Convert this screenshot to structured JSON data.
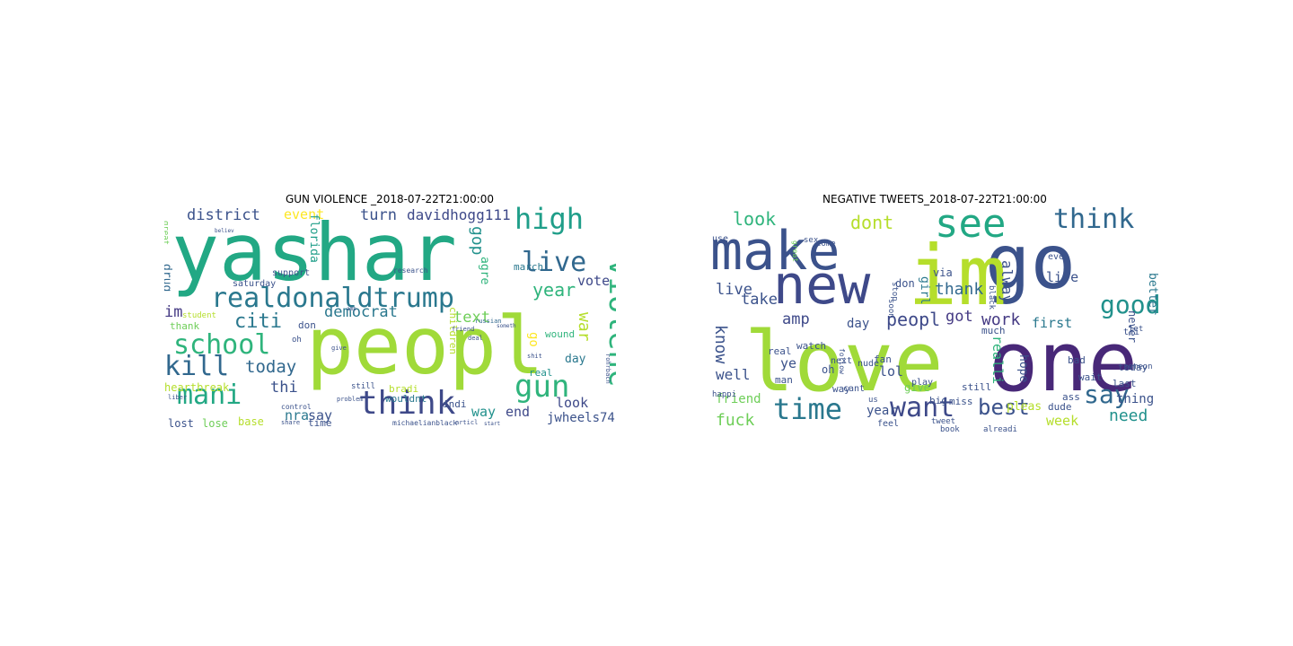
{
  "figure": {
    "panels": [
      {
        "title": "GUN VIOLENCE _2018-07-22T21:00:00",
        "words": [
          {
            "text": "yashar",
            "color": "#22a884",
            "rot": 0
          },
          {
            "text": "peopl",
            "color": "#a0da39",
            "rot": 0
          },
          {
            "text": "realdonaldtrump",
            "color": "#2a788e",
            "rot": 0
          },
          {
            "text": "school",
            "color": "#2fb47c",
            "rot": 0
          },
          {
            "text": "mani",
            "color": "#22a884",
            "rot": 0
          },
          {
            "text": "kill",
            "color": "#31688e",
            "rot": 0
          },
          {
            "text": "think",
            "color": "#3e4989",
            "rot": 0
          },
          {
            "text": "high",
            "color": "#1f9e89",
            "rot": 0
          },
          {
            "text": "live",
            "color": "#31688e",
            "rot": 0
          },
          {
            "text": "violenc",
            "color": "#2fb47c",
            "rot": 90
          },
          {
            "text": "gun",
            "color": "#2fb47c",
            "rot": 0
          },
          {
            "text": "district",
            "color": "#3b528b",
            "rot": 0
          },
          {
            "text": "davidhogg111",
            "color": "#3e4989",
            "rot": 0
          },
          {
            "text": "turn",
            "color": "#3b528b",
            "rot": 0
          },
          {
            "text": "event",
            "color": "#fde725",
            "rot": 0
          },
          {
            "text": "democrat",
            "color": "#2a788e",
            "rot": 0
          },
          {
            "text": "citi",
            "color": "#2a788e",
            "rot": 0
          },
          {
            "text": "year",
            "color": "#2fb47c",
            "rot": 0
          },
          {
            "text": "today",
            "color": "#31688e",
            "rot": 0
          },
          {
            "text": "text",
            "color": "#6ece58",
            "rot": 0
          },
          {
            "text": "im",
            "color": "#443983",
            "rot": 0
          },
          {
            "text": "thi",
            "color": "#3b528b",
            "rot": 0
          },
          {
            "text": "nra",
            "color": "#2a788e",
            "rot": 0
          },
          {
            "text": "say",
            "color": "#3b528b",
            "rot": 0
          },
          {
            "text": "end",
            "color": "#3e4989",
            "rot": 0
          },
          {
            "text": "jwheels74",
            "color": "#3b528b",
            "rot": 0
          },
          {
            "text": "vote",
            "color": "#3e4989",
            "rot": 0
          },
          {
            "text": "gop",
            "color": "#21918c",
            "rot": 90
          },
          {
            "text": "war",
            "color": "#b5de2b",
            "rot": 90
          },
          {
            "text": "look",
            "color": "#3e4989",
            "rot": 0
          },
          {
            "text": "way",
            "color": "#21918c",
            "rot": 0
          },
          {
            "text": "heartbreak",
            "color": "#b5de2b",
            "rot": 0
          },
          {
            "text": "base",
            "color": "#b5de2b",
            "rot": 0
          },
          {
            "text": "lost",
            "color": "#3b528b",
            "rot": 0
          },
          {
            "text": "lose",
            "color": "#6ece58",
            "rot": 0
          },
          {
            "text": "florida",
            "color": "#1f9e89",
            "rot": 90
          },
          {
            "text": "drug",
            "color": "#31688e",
            "rot": 90
          },
          {
            "text": "agre",
            "color": "#2fb47c",
            "rot": 90
          },
          {
            "text": "march",
            "color": "#2a788e",
            "rot": 0
          },
          {
            "text": "go",
            "color": "#fde725",
            "rot": 90
          },
          {
            "text": "day",
            "color": "#2a788e",
            "rot": 0
          },
          {
            "text": "real",
            "color": "#21918c",
            "rot": 0
          },
          {
            "text": "indi",
            "color": "#3b528b",
            "rot": 0
          },
          {
            "text": "wouldnt",
            "color": "#2a788e",
            "rot": 0
          },
          {
            "text": "bradi",
            "color": "#b5de2b",
            "rot": 0
          },
          {
            "text": "still",
            "color": "#3b528b",
            "rot": 0
          },
          {
            "text": "time",
            "color": "#3b528b",
            "rot": 0
          },
          {
            "text": "don",
            "color": "#3b528b",
            "rot": 0
          },
          {
            "text": "saturday",
            "color": "#3b528b",
            "rot": 0
          },
          {
            "text": "support",
            "color": "#3b528b",
            "rot": 0
          },
          {
            "text": "thank",
            "color": "#6ece58",
            "rot": 0
          },
          {
            "text": "children",
            "color": "#b5de2b",
            "rot": 90
          },
          {
            "text": "wound",
            "color": "#2fb47c",
            "rot": 0
          },
          {
            "text": "research",
            "color": "#3b528b",
            "rot": 0
          },
          {
            "text": "russian",
            "color": "#31688e",
            "rot": 0
          },
          {
            "text": "shit",
            "color": "#3b528b",
            "rot": 0
          },
          {
            "text": "student",
            "color": "#b5de2b",
            "rot": 0
          },
          {
            "text": "michaelianblack",
            "color": "#3b528b",
            "rot": 0
          },
          {
            "text": "articl",
            "color": "#3b528b",
            "rot": 0
          },
          {
            "text": "share",
            "color": "#3b528b",
            "rot": 0
          },
          {
            "text": "control",
            "color": "#3b528b",
            "rot": 0
          },
          {
            "text": "problem",
            "color": "#3b528b",
            "rot": 0
          },
          {
            "text": "liber",
            "color": "#3b528b",
            "rot": 0
          },
          {
            "text": "great",
            "color": "#6ece58",
            "rot": 90
          },
          {
            "text": "rohrbach",
            "color": "#3b528b",
            "rot": 90
          },
          {
            "text": "oh",
            "color": "#3b528b",
            "rot": 0
          },
          {
            "text": "friend",
            "color": "#3b528b",
            "rot": 0
          },
          {
            "text": "deal",
            "color": "#3b528b",
            "rot": 0
          },
          {
            "text": "give",
            "color": "#3b528b",
            "rot": 0
          },
          {
            "text": "amp",
            "color": "#3b528b",
            "rot": 0
          },
          {
            "text": "believ",
            "color": "#3b528b",
            "rot": 0
          },
          {
            "text": "start",
            "color": "#3b528b",
            "rot": 0
          },
          {
            "text": "someth",
            "color": "#3b528b",
            "rot": 0
          }
        ]
      },
      {
        "title": "NEGATIVE TWEETS_2018-07-22T21:00:00",
        "words": [
          {
            "text": "make",
            "color": "#3b528b",
            "rot": 0
          },
          {
            "text": "go",
            "color": "#3b528b",
            "rot": 0
          },
          {
            "text": "im",
            "color": "#b5de2b",
            "rot": 0
          },
          {
            "text": "new",
            "color": "#3e4989",
            "rot": 0
          },
          {
            "text": "see",
            "color": "#22a884",
            "rot": 0
          },
          {
            "text": "love",
            "color": "#a0da39",
            "rot": 0
          },
          {
            "text": "one",
            "color": "#482878",
            "rot": 0
          },
          {
            "text": "think",
            "color": "#31688e",
            "rot": 0
          },
          {
            "text": "good",
            "color": "#21918c",
            "rot": 0
          },
          {
            "text": "time",
            "color": "#2a788e",
            "rot": 0
          },
          {
            "text": "want",
            "color": "#3e4989",
            "rot": 0
          },
          {
            "text": "best",
            "color": "#3b528b",
            "rot": 0
          },
          {
            "text": "say",
            "color": "#31688e",
            "rot": 0
          },
          {
            "text": "look",
            "color": "#2fb47c",
            "rot": 0
          },
          {
            "text": "dont",
            "color": "#b5de2b",
            "rot": 0
          },
          {
            "text": "thank",
            "color": "#31688e",
            "rot": 0
          },
          {
            "text": "peopl",
            "color": "#3e4989",
            "rot": 0
          },
          {
            "text": "got",
            "color": "#443983",
            "rot": 0
          },
          {
            "text": "work",
            "color": "#443983",
            "rot": 0
          },
          {
            "text": "know",
            "color": "#3b528b",
            "rot": 90
          },
          {
            "text": "live",
            "color": "#3b528b",
            "rot": 0
          },
          {
            "text": "amp",
            "color": "#3e4989",
            "rot": 0
          },
          {
            "text": "take",
            "color": "#3b528b",
            "rot": 0
          },
          {
            "text": "day",
            "color": "#3b528b",
            "rot": 0
          },
          {
            "text": "well",
            "color": "#3b528b",
            "rot": 0
          },
          {
            "text": "fuck",
            "color": "#6ece58",
            "rot": 0
          },
          {
            "text": "friend",
            "color": "#6ece58",
            "rot": 0
          },
          {
            "text": "need",
            "color": "#21918c",
            "rot": 0
          },
          {
            "text": "week",
            "color": "#b5de2b",
            "rot": 0
          },
          {
            "text": "thing",
            "color": "#3b528b",
            "rot": 0
          },
          {
            "text": "first",
            "color": "#2a788e",
            "rot": 0
          },
          {
            "text": "life",
            "color": "#3b528b",
            "rot": 0
          },
          {
            "text": "alway",
            "color": "#3b528b",
            "rot": 90
          },
          {
            "text": "realli",
            "color": "#2fb47c",
            "rot": 90
          },
          {
            "text": "lol",
            "color": "#3b528b",
            "rot": 0
          },
          {
            "text": "year",
            "color": "#3b528b",
            "rot": 0
          },
          {
            "text": "never",
            "color": "#3b528b",
            "rot": 90
          },
          {
            "text": "better",
            "color": "#2a788e",
            "rot": 90
          },
          {
            "text": "girl",
            "color": "#2a788e",
            "rot": 90
          },
          {
            "text": "don",
            "color": "#3b528b",
            "rot": 0
          },
          {
            "text": "via",
            "color": "#3b528b",
            "rot": 0
          },
          {
            "text": "watch",
            "color": "#3b528b",
            "rot": 0
          },
          {
            "text": "ye",
            "color": "#3b528b",
            "rot": 0
          },
          {
            "text": "today",
            "color": "#3b528b",
            "rot": 0
          },
          {
            "text": "tri",
            "color": "#3b528b",
            "rot": 0
          },
          {
            "text": "even",
            "color": "#3b528b",
            "rot": 0
          },
          {
            "text": "man",
            "color": "#3b528b",
            "rot": 0
          },
          {
            "text": "real",
            "color": "#3b528b",
            "rot": 0
          },
          {
            "text": "oh",
            "color": "#3b528b",
            "rot": 0
          },
          {
            "text": "hope",
            "color": "#3b528b",
            "rot": 90
          },
          {
            "text": "bad",
            "color": "#3b528b",
            "rot": 0
          },
          {
            "text": "wait",
            "color": "#3b528b",
            "rot": 0
          },
          {
            "text": "last",
            "color": "#3b528b",
            "rot": 0
          },
          {
            "text": "give",
            "color": "#6ece58",
            "rot": 0
          },
          {
            "text": "still",
            "color": "#3b528b",
            "rot": 0
          },
          {
            "text": "feel",
            "color": "#3b528b",
            "rot": 0
          },
          {
            "text": "alreadi",
            "color": "#3b528b",
            "rot": 0
          },
          {
            "text": "book",
            "color": "#3b528b",
            "rot": 0
          },
          {
            "text": "tweet",
            "color": "#3b528b",
            "rot": 0
          },
          {
            "text": "pleas",
            "color": "#b5de2b",
            "rot": 0
          },
          {
            "text": "ass",
            "color": "#3b528b",
            "rot": 0
          },
          {
            "text": "someon",
            "color": "#3b528b",
            "rot": 0
          },
          {
            "text": "dude",
            "color": "#3b528b",
            "rot": 0
          },
          {
            "text": "much",
            "color": "#3b528b",
            "rot": 0
          },
          {
            "text": "next",
            "color": "#3b528b",
            "rot": 0
          },
          {
            "text": "nude",
            "color": "#3b528b",
            "rot": 0
          },
          {
            "text": "sex",
            "color": "#3b528b",
            "rot": 0
          },
          {
            "text": "come",
            "color": "#3b528b",
            "rot": 0
          },
          {
            "text": "use",
            "color": "#3b528b",
            "rot": 0
          },
          {
            "text": "happi",
            "color": "#3b528b",
            "rot": 0
          },
          {
            "text": "stop",
            "color": "#3b528b",
            "rot": 90
          },
          {
            "text": "black",
            "color": "#3b528b",
            "rot": 90
          },
          {
            "text": "let",
            "color": "#3b528b",
            "rot": 0
          },
          {
            "text": "play",
            "color": "#3b528b",
            "rot": 0
          },
          {
            "text": "big",
            "color": "#3b528b",
            "rot": 0
          },
          {
            "text": "miss",
            "color": "#3b528b",
            "rot": 0
          },
          {
            "text": "soon",
            "color": "#3b528b",
            "rot": 90
          },
          {
            "text": "fan",
            "color": "#3b528b",
            "rot": 0
          },
          {
            "text": "us",
            "color": "#3b528b",
            "rot": 0
          },
          {
            "text": "cant",
            "color": "#3b528b",
            "rot": 0
          },
          {
            "text": "follow",
            "color": "#3b528b",
            "rot": 90
          },
          {
            "text": "great",
            "color": "#6ece58",
            "rot": 90
          },
          {
            "text": "way",
            "color": "#3b528b",
            "rot": 0
          }
        ]
      }
    ]
  }
}
